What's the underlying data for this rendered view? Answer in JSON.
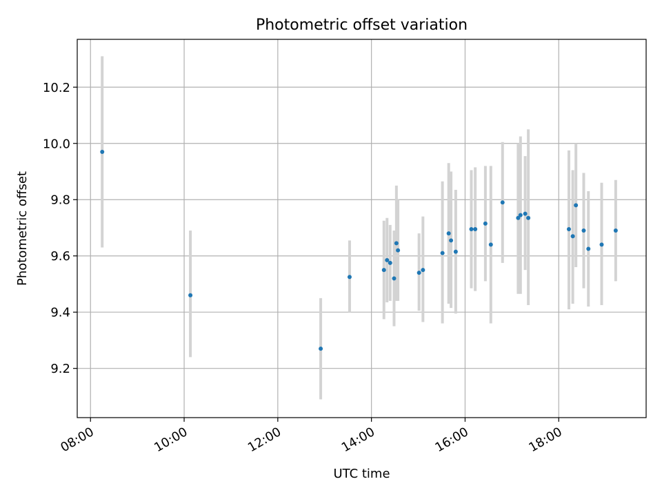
{
  "chart_data": {
    "type": "scatter",
    "title": "Photometric offset variation",
    "xlabel": "UTC time",
    "ylabel": "Photometric offset",
    "x_unit": "time",
    "xlim": [
      "07:43",
      "19:52"
    ],
    "ylim": [
      9.025,
      10.37
    ],
    "x_ticks": [
      "08:00",
      "10:00",
      "12:00",
      "14:00",
      "16:00",
      "18:00"
    ],
    "y_ticks": [
      9.2,
      9.4,
      9.6,
      9.8,
      10.0,
      10.2
    ],
    "y_tick_labels": [
      "9.2",
      "9.4",
      "9.6",
      "9.8",
      "10.0",
      "10.2"
    ],
    "grid": true,
    "colors": {
      "point": "#1f77b4",
      "errorbar": "#d3d3d3",
      "grid": "#b0b0b0"
    },
    "points": [
      {
        "x": "08:15",
        "y": 9.97,
        "ylo": 9.63,
        "yhi": 10.31
      },
      {
        "x": "10:08",
        "y": 9.46,
        "ylo": 9.24,
        "yhi": 9.69
      },
      {
        "x": "12:55",
        "y": 9.27,
        "ylo": 9.09,
        "yhi": 9.45
      },
      {
        "x": "13:32",
        "y": 9.525,
        "ylo": 9.4,
        "yhi": 9.655
      },
      {
        "x": "14:16",
        "y": 9.55,
        "ylo": 9.375,
        "yhi": 9.725
      },
      {
        "x": "14:20",
        "y": 9.585,
        "ylo": 9.435,
        "yhi": 9.735
      },
      {
        "x": "14:24",
        "y": 9.575,
        "ylo": 9.44,
        "yhi": 9.71
      },
      {
        "x": "14:29",
        "y": 9.52,
        "ylo": 9.35,
        "yhi": 9.69
      },
      {
        "x": "14:32",
        "y": 9.645,
        "ylo": 9.44,
        "yhi": 9.85
      },
      {
        "x": "14:34",
        "y": 9.62,
        "ylo": 9.44,
        "yhi": 9.8
      },
      {
        "x": "15:01",
        "y": 9.54,
        "ylo": 9.405,
        "yhi": 9.68
      },
      {
        "x": "15:06",
        "y": 9.55,
        "ylo": 9.365,
        "yhi": 9.74
      },
      {
        "x": "15:31",
        "y": 9.61,
        "ylo": 9.36,
        "yhi": 9.865
      },
      {
        "x": "15:39",
        "y": 9.68,
        "ylo": 9.43,
        "yhi": 9.93
      },
      {
        "x": "15:42",
        "y": 9.655,
        "ylo": 9.415,
        "yhi": 9.9
      },
      {
        "x": "15:48",
        "y": 9.615,
        "ylo": 9.395,
        "yhi": 9.835
      },
      {
        "x": "16:08",
        "y": 9.695,
        "ylo": 9.485,
        "yhi": 9.905
      },
      {
        "x": "16:13",
        "y": 9.695,
        "ylo": 9.475,
        "yhi": 9.915
      },
      {
        "x": "16:26",
        "y": 9.715,
        "ylo": 9.51,
        "yhi": 9.92
      },
      {
        "x": "16:33",
        "y": 9.64,
        "ylo": 9.36,
        "yhi": 9.92
      },
      {
        "x": "16:48",
        "y": 9.79,
        "ylo": 9.575,
        "yhi": 10.005
      },
      {
        "x": "17:08",
        "y": 9.735,
        "ylo": 9.465,
        "yhi": 10.0
      },
      {
        "x": "17:11",
        "y": 9.745,
        "ylo": 9.465,
        "yhi": 10.025
      },
      {
        "x": "17:17",
        "y": 9.75,
        "ylo": 9.55,
        "yhi": 9.955
      },
      {
        "x": "17:21",
        "y": 9.735,
        "ylo": 9.425,
        "yhi": 10.05
      },
      {
        "x": "18:13",
        "y": 9.695,
        "ylo": 9.41,
        "yhi": 9.975
      },
      {
        "x": "18:18",
        "y": 9.67,
        "ylo": 9.43,
        "yhi": 9.905
      },
      {
        "x": "18:22",
        "y": 9.78,
        "ylo": 9.56,
        "yhi": 10.0
      },
      {
        "x": "18:32",
        "y": 9.69,
        "ylo": 9.485,
        "yhi": 9.895
      },
      {
        "x": "18:38",
        "y": 9.625,
        "ylo": 9.42,
        "yhi": 9.83
      },
      {
        "x": "18:55",
        "y": 9.64,
        "ylo": 9.425,
        "yhi": 9.86
      },
      {
        "x": "19:13",
        "y": 9.69,
        "ylo": 9.51,
        "yhi": 9.87
      }
    ]
  }
}
